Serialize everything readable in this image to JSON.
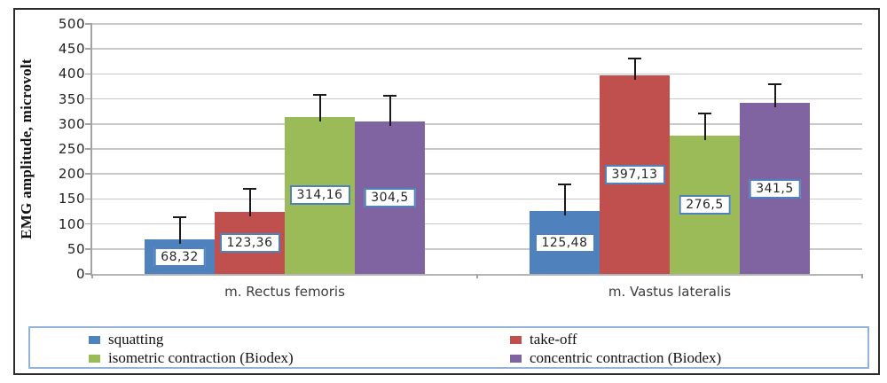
{
  "chart_data": {
    "type": "bar",
    "title": "",
    "ylabel": "EMG amplitude, microvolt",
    "xlabel": "",
    "ylim": [
      0,
      500
    ],
    "ytick_step": 50,
    "grid": true,
    "legend_position": "bottom",
    "categories": [
      "m. Rectus femoris",
      "m. Vastus lateralis"
    ],
    "series": [
      {
        "name": "squatting",
        "color": "#4f81bd",
        "values": [
          68.32,
          125.48
        ],
        "value_labels": [
          "68,32",
          "125,48"
        ],
        "error_plus": [
          45,
          53
        ]
      },
      {
        "name": "take-off",
        "color": "#c0504d",
        "values": [
          123.36,
          397.13
        ],
        "value_labels": [
          "123,36",
          "397,13"
        ],
        "error_plus": [
          47,
          34
        ]
      },
      {
        "name": "isometric contraction (Biodex)",
        "color": "#9bbb59",
        "values": [
          314.16,
          276.5
        ],
        "value_labels": [
          "314,16",
          "276,5"
        ],
        "error_plus": [
          44,
          44
        ]
      },
      {
        "name": "concentric contraction (Biodex)",
        "color": "#8064a2",
        "values": [
          304.5,
          341.5
        ],
        "value_labels": [
          "304,5",
          "341,5"
        ],
        "error_plus": [
          52,
          38
        ]
      }
    ],
    "colors": {
      "gridline": "#c9c9c9",
      "axis": "#a3a3a3",
      "outer_border": "#2b2b2b",
      "legend_border": "#95b3d7",
      "value_label_border": "#4f81bd",
      "error_bar": "#1a1a1a"
    }
  }
}
